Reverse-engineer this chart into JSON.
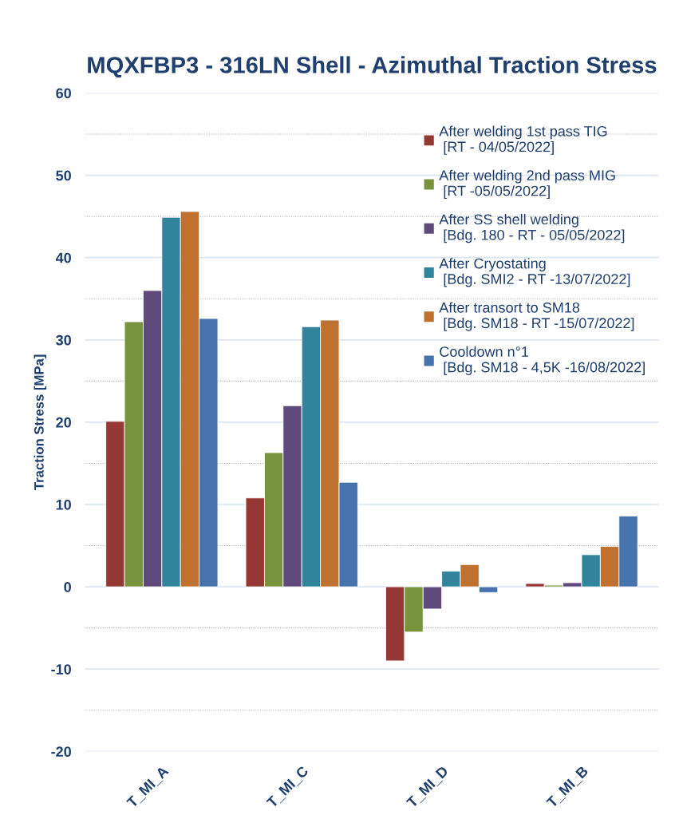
{
  "chart_data": {
    "type": "bar",
    "title": "MQXFBP3 - 316LN Shell - Azimuthal Traction Stress",
    "ylabel": "Traction Stress [MPa]",
    "categories": [
      "T_MI_A",
      "T_MI_C",
      "T_MI_D",
      "T_MI_B"
    ],
    "series": [
      {
        "name": "After welding 1st pass TIG\n [RT - 04/05/2022]",
        "color": "#953735",
        "values": [
          20.1,
          10.8,
          -9.0,
          0.4
        ]
      },
      {
        "name": "After welding 2nd pass MIG\n [RT -05/05/2022]",
        "color": "#77933c",
        "values": [
          32.2,
          16.3,
          -5.5,
          0.2
        ]
      },
      {
        "name": "After SS shell welding\n [Bdg. 180 - RT - 05/05/2022]",
        "color": "#604a7b",
        "values": [
          36.0,
          22.0,
          -2.7,
          0.5
        ]
      },
      {
        "name": "After Cryostating\n [Bdg. SMI2 - RT -13/07/2022]",
        "color": "#31849b",
        "values": [
          44.9,
          31.6,
          1.9,
          3.9
        ]
      },
      {
        "name": "After transort to SM18\n [Bdg. SM18 - RT -15/07/2022]",
        "color": "#c0712f",
        "values": [
          45.6,
          32.4,
          2.7,
          4.9
        ]
      },
      {
        "name": "Cooldown n°1\n [Bdg. SM18 - 4,5K -16/08/2022]",
        "color": "#4673ac",
        "values": [
          32.6,
          12.7,
          -0.7,
          8.6
        ]
      }
    ],
    "ylim": [
      -20,
      60
    ],
    "yticks": [
      -20,
      -10,
      0,
      10,
      20,
      30,
      40,
      50,
      60
    ],
    "grid": "y",
    "legend": "top right"
  }
}
